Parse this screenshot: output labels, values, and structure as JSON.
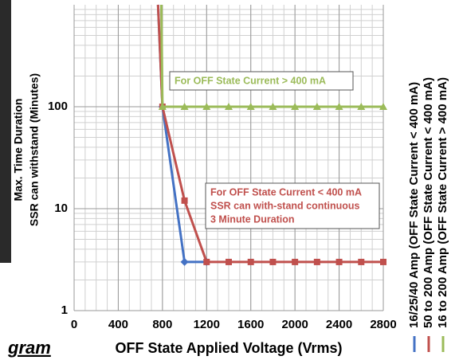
{
  "chart_data": {
    "type": "line",
    "y_label": [
      "Max. Time Duration",
      "SSR can withstand (Minutes)"
    ],
    "x_label": "OFF State Applied Voltage (Vrms)",
    "caption_fragment": "gram",
    "xlim": [
      0,
      2800
    ],
    "xticks": [
      0,
      400,
      800,
      1200,
      1600,
      2000,
      2400,
      2800
    ],
    "ylim": [
      1,
      1000
    ],
    "yticks": [
      1,
      10,
      100
    ],
    "log_y": true,
    "grid": true,
    "series": [
      {
        "name": "16/25/40 Amp  (OFF State Current < 400 mA)",
        "color": "#4472c4",
        "marker": "diamond",
        "x": [
          760,
          800,
          1000,
          1200
        ],
        "values": [
          1000,
          100,
          3,
          3
        ]
      },
      {
        "name": "50 to 200 Amp  (OFF State Current < 400 mA)",
        "color": "#c0504d",
        "marker": "square",
        "x": [
          760,
          800,
          1000,
          1200,
          1400,
          1600,
          1800,
          2000,
          2200,
          2400,
          2600,
          2800
        ],
        "values": [
          1000,
          100,
          12,
          3,
          3,
          3,
          3,
          3,
          3,
          3,
          3,
          3
        ]
      },
      {
        "name": "16 to 200 Amp  (OFF State Current > 400 mA)",
        "color": "#9bbb59",
        "marker": "triangle",
        "x": [
          790,
          800,
          1000,
          1200,
          1400,
          1600,
          1800,
          2000,
          2200,
          2400,
          2600,
          2800
        ],
        "values": [
          1000,
          100,
          100,
          100,
          100,
          100,
          100,
          100,
          100,
          100,
          100,
          100
        ]
      }
    ],
    "annotations": [
      {
        "lines": [
          "For OFF State Current > 400 mA"
        ],
        "color": "#9bbb59"
      },
      {
        "lines": [
          "For OFF State Current < 400 mA",
          "SSR can with-stand continuous",
          "3 Minute Duration"
        ],
        "color": "#c0504d"
      }
    ]
  }
}
